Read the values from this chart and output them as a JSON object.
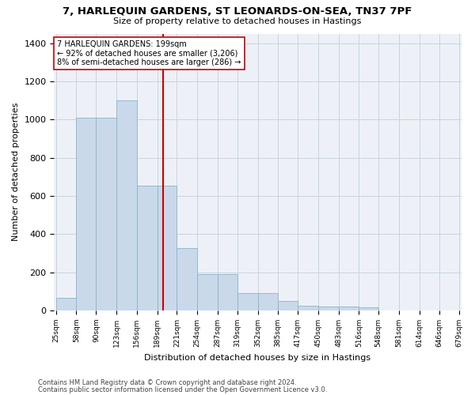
{
  "title": "7, HARLEQUIN GARDENS, ST LEONARDS-ON-SEA, TN37 7PF",
  "subtitle": "Size of property relative to detached houses in Hastings",
  "xlabel": "Distribution of detached houses by size in Hastings",
  "ylabel": "Number of detached properties",
  "footnote1": "Contains HM Land Registry data © Crown copyright and database right 2024.",
  "footnote2": "Contains public sector information licensed under the Open Government Licence v3.0.",
  "annotation_line1": "7 HARLEQUIN GARDENS: 199sqm",
  "annotation_line2": "← 92% of detached houses are smaller (3,206)",
  "annotation_line3": "8% of semi-detached houses are larger (286) →",
  "bar_color": "#c9d9ea",
  "bar_edge_color": "#8ab4cc",
  "grid_color": "#c8d4de",
  "bg_color": "#edf1f7",
  "vline_color": "#cc0000",
  "vline_x": 199,
  "bins": [
    25,
    58,
    90,
    123,
    156,
    189,
    221,
    254,
    287,
    319,
    352,
    385,
    417,
    450,
    483,
    516,
    548,
    581,
    614,
    646,
    679
  ],
  "bin_labels": [
    "25sqm",
    "58sqm",
    "90sqm",
    "123sqm",
    "156sqm",
    "189sqm",
    "221sqm",
    "254sqm",
    "287sqm",
    "319sqm",
    "352sqm",
    "385sqm",
    "417sqm",
    "450sqm",
    "483sqm",
    "516sqm",
    "548sqm",
    "581sqm",
    "614sqm",
    "646sqm",
    "679sqm"
  ],
  "bar_heights": [
    65,
    1010,
    1010,
    1100,
    655,
    655,
    325,
    190,
    190,
    90,
    90,
    50,
    25,
    20,
    20,
    15,
    0,
    0,
    0,
    0
  ],
  "ylim": [
    0,
    1450
  ],
  "yticks": [
    0,
    200,
    400,
    600,
    800,
    1000,
    1200,
    1400
  ]
}
